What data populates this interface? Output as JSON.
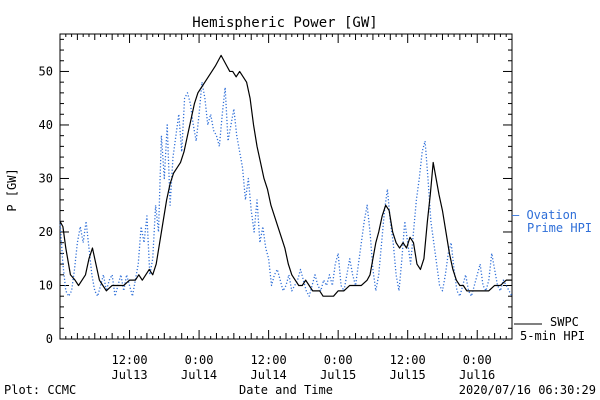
{
  "chart_data": {
    "type": "line",
    "title": "Hemispheric Power [GW]",
    "xlabel": "Date and Time",
    "ylabel": "P [GW]",
    "ylim": [
      0,
      57
    ],
    "xlim": [
      0,
      78
    ],
    "y_ticks": [
      0,
      10,
      20,
      30,
      40,
      50
    ],
    "x_ticks": [
      {
        "x": 12,
        "line1": "12:00",
        "line2": "Jul13"
      },
      {
        "x": 24,
        "line1": "0:00",
        "line2": "Jul14"
      },
      {
        "x": 36,
        "line1": "12:00",
        "line2": "Jul14"
      },
      {
        "x": 48,
        "line1": "0:00",
        "line2": "Jul15"
      },
      {
        "x": 60,
        "line1": "12:00",
        "line2": "Jul15"
      },
      {
        "x": 72,
        "line1": "0:00",
        "line2": "Jul16"
      }
    ],
    "grid": false,
    "series": [
      {
        "name": "SWPC 5-min HPI",
        "legend_line1": "SWPC",
        "legend_line2": "5-min HPI",
        "style": "solid",
        "color": "#000000",
        "points": [
          [
            0,
            22
          ],
          [
            0.5,
            21
          ],
          [
            1,
            17
          ],
          [
            1.8,
            12
          ],
          [
            2.6,
            11
          ],
          [
            3.2,
            10
          ],
          [
            3.8,
            11
          ],
          [
            4.4,
            12
          ],
          [
            5,
            15
          ],
          [
            5.6,
            17
          ],
          [
            6.2,
            14
          ],
          [
            6.8,
            11
          ],
          [
            7.4,
            10
          ],
          [
            8,
            9
          ],
          [
            9,
            10
          ],
          [
            10,
            10
          ],
          [
            11,
            10
          ],
          [
            12,
            11
          ],
          [
            13,
            11
          ],
          [
            13.6,
            12
          ],
          [
            14.2,
            11
          ],
          [
            14.8,
            12
          ],
          [
            15.4,
            13
          ],
          [
            16,
            12
          ],
          [
            16.6,
            14
          ],
          [
            17.2,
            18
          ],
          [
            17.8,
            22
          ],
          [
            18.4,
            26
          ],
          [
            19,
            29
          ],
          [
            19.6,
            31
          ],
          [
            20.2,
            32
          ],
          [
            20.8,
            33
          ],
          [
            21.4,
            35
          ],
          [
            22,
            38
          ],
          [
            22.6,
            41
          ],
          [
            23.2,
            44
          ],
          [
            23.8,
            46
          ],
          [
            24.4,
            47
          ],
          [
            25,
            48
          ],
          [
            25.6,
            49
          ],
          [
            26.2,
            50
          ],
          [
            26.8,
            51
          ],
          [
            27.3,
            52
          ],
          [
            27.8,
            53
          ],
          [
            28.3,
            52
          ],
          [
            28.8,
            51
          ],
          [
            29.3,
            50
          ],
          [
            29.8,
            50
          ],
          [
            30.4,
            49
          ],
          [
            31,
            50
          ],
          [
            31.6,
            49
          ],
          [
            32.2,
            48
          ],
          [
            32.8,
            45
          ],
          [
            33.4,
            40
          ],
          [
            34,
            36
          ],
          [
            34.6,
            33
          ],
          [
            35.2,
            30
          ],
          [
            35.8,
            28
          ],
          [
            36.4,
            25
          ],
          [
            37,
            23
          ],
          [
            37.6,
            21
          ],
          [
            38.2,
            19
          ],
          [
            38.8,
            17
          ],
          [
            39.4,
            14
          ],
          [
            40,
            12
          ],
          [
            40.6,
            11
          ],
          [
            41.2,
            10
          ],
          [
            41.8,
            10
          ],
          [
            42.4,
            11
          ],
          [
            43,
            10
          ],
          [
            43.6,
            9
          ],
          [
            44.2,
            9
          ],
          [
            44.8,
            9
          ],
          [
            45.4,
            8
          ],
          [
            46,
            8
          ],
          [
            46.6,
            8
          ],
          [
            47.2,
            8
          ],
          [
            48,
            9
          ],
          [
            49,
            9
          ],
          [
            50,
            10
          ],
          [
            51,
            10
          ],
          [
            52,
            10
          ],
          [
            53,
            11
          ],
          [
            53.5,
            12
          ],
          [
            54,
            15
          ],
          [
            54.5,
            18
          ],
          [
            55,
            20
          ],
          [
            55.6,
            23
          ],
          [
            56.2,
            25
          ],
          [
            56.8,
            24
          ],
          [
            57.4,
            20
          ],
          [
            58,
            18
          ],
          [
            58.6,
            17
          ],
          [
            59.2,
            18
          ],
          [
            59.8,
            17
          ],
          [
            60.4,
            19
          ],
          [
            61,
            18
          ],
          [
            61.6,
            14
          ],
          [
            62.2,
            13
          ],
          [
            62.8,
            15
          ],
          [
            63.4,
            22
          ],
          [
            63.9,
            27
          ],
          [
            64.4,
            33
          ],
          [
            64.9,
            30
          ],
          [
            65.4,
            27
          ],
          [
            66,
            24
          ],
          [
            66.6,
            20
          ],
          [
            67.2,
            16
          ],
          [
            67.8,
            13
          ],
          [
            68.4,
            11
          ],
          [
            69,
            10
          ],
          [
            69.6,
            10
          ],
          [
            70.2,
            9
          ],
          [
            71,
            9
          ],
          [
            72,
            9
          ],
          [
            73,
            9
          ],
          [
            74,
            9
          ],
          [
            75,
            10
          ],
          [
            76,
            10
          ],
          [
            77,
            11
          ],
          [
            78,
            11
          ]
        ]
      },
      {
        "name": "Ovation Prime HPI",
        "legend_line1": "– Ovation",
        "legend_line2": "Prime HPI",
        "style": "dotted",
        "color": "#2f6fd8",
        "points": [
          [
            0,
            22
          ],
          [
            0.5,
            14
          ],
          [
            1,
            9
          ],
          [
            1.5,
            8
          ],
          [
            2,
            9
          ],
          [
            2.5,
            13
          ],
          [
            3,
            18
          ],
          [
            3.5,
            21
          ],
          [
            4,
            18
          ],
          [
            4.5,
            22
          ],
          [
            5,
            17
          ],
          [
            5.5,
            12
          ],
          [
            6,
            9
          ],
          [
            6.5,
            8
          ],
          [
            7,
            10
          ],
          [
            7.5,
            12
          ],
          [
            8,
            9
          ],
          [
            8.5,
            11
          ],
          [
            9,
            12
          ],
          [
            9.5,
            8
          ],
          [
            10,
            10
          ],
          [
            10.5,
            12
          ],
          [
            11,
            9
          ],
          [
            11.5,
            12
          ],
          [
            12,
            10
          ],
          [
            12.5,
            8
          ],
          [
            13,
            11
          ],
          [
            13.5,
            14
          ],
          [
            14,
            21
          ],
          [
            14.5,
            18
          ],
          [
            15,
            23
          ],
          [
            15.5,
            12
          ],
          [
            16,
            15
          ],
          [
            16.5,
            25
          ],
          [
            17,
            20
          ],
          [
            17.5,
            38
          ],
          [
            18,
            30
          ],
          [
            18.5,
            40
          ],
          [
            19,
            25
          ],
          [
            19.5,
            34
          ],
          [
            20,
            38
          ],
          [
            20.5,
            42
          ],
          [
            21,
            35
          ],
          [
            21.5,
            45
          ],
          [
            22,
            46
          ],
          [
            22.5,
            44
          ],
          [
            23,
            40
          ],
          [
            23.5,
            37
          ],
          [
            24,
            42
          ],
          [
            24.5,
            48
          ],
          [
            25,
            45
          ],
          [
            25.5,
            40
          ],
          [
            26,
            42
          ],
          [
            26.5,
            39
          ],
          [
            27,
            38
          ],
          [
            27.5,
            36
          ],
          [
            28,
            42
          ],
          [
            28.5,
            47
          ],
          [
            29,
            37
          ],
          [
            29.5,
            40
          ],
          [
            30,
            43
          ],
          [
            30.5,
            38
          ],
          [
            31,
            35
          ],
          [
            31.5,
            32
          ],
          [
            32,
            26
          ],
          [
            32.5,
            30
          ],
          [
            33,
            24
          ],
          [
            33.5,
            20
          ],
          [
            34,
            26
          ],
          [
            34.5,
            18
          ],
          [
            35,
            21
          ],
          [
            35.5,
            17
          ],
          [
            36,
            15
          ],
          [
            36.5,
            10
          ],
          [
            37,
            12
          ],
          [
            37.5,
            13
          ],
          [
            38,
            11
          ],
          [
            38.5,
            9
          ],
          [
            39,
            10
          ],
          [
            39.5,
            12
          ],
          [
            40,
            9
          ],
          [
            40.5,
            10
          ],
          [
            41,
            11
          ],
          [
            41.5,
            13
          ],
          [
            42,
            11
          ],
          [
            42.5,
            9
          ],
          [
            43,
            8
          ],
          [
            43.5,
            10
          ],
          [
            44,
            12
          ],
          [
            44.5,
            10
          ],
          [
            45,
            9
          ],
          [
            45.5,
            11
          ],
          [
            46,
            10
          ],
          [
            46.5,
            12
          ],
          [
            47,
            10
          ],
          [
            47.5,
            14
          ],
          [
            48,
            16
          ],
          [
            48.5,
            10
          ],
          [
            49,
            9
          ],
          [
            49.5,
            12
          ],
          [
            50,
            15
          ],
          [
            50.5,
            12
          ],
          [
            51,
            10
          ],
          [
            51.5,
            14
          ],
          [
            52,
            18
          ],
          [
            52.5,
            22
          ],
          [
            53,
            25
          ],
          [
            53.5,
            20
          ],
          [
            54,
            13
          ],
          [
            54.5,
            9
          ],
          [
            55,
            12
          ],
          [
            55.5,
            18
          ],
          [
            56,
            24
          ],
          [
            56.5,
            28
          ],
          [
            57,
            22
          ],
          [
            57.5,
            18
          ],
          [
            58,
            12
          ],
          [
            58.5,
            9
          ],
          [
            59,
            15
          ],
          [
            59.5,
            22
          ],
          [
            60,
            18
          ],
          [
            60.5,
            14
          ],
          [
            61,
            20
          ],
          [
            61.5,
            26
          ],
          [
            62,
            30
          ],
          [
            62.5,
            35
          ],
          [
            63,
            37
          ],
          [
            63.5,
            30
          ],
          [
            64,
            22
          ],
          [
            64.5,
            18
          ],
          [
            65,
            14
          ],
          [
            65.5,
            10
          ],
          [
            66,
            9
          ],
          [
            66.5,
            12
          ],
          [
            67,
            16
          ],
          [
            67.5,
            18
          ],
          [
            68,
            13
          ],
          [
            68.5,
            9
          ],
          [
            69,
            8
          ],
          [
            69.5,
            10
          ],
          [
            70,
            12
          ],
          [
            70.5,
            9
          ],
          [
            71,
            8
          ],
          [
            71.5,
            10
          ],
          [
            72,
            12
          ],
          [
            72.5,
            14
          ],
          [
            73,
            10
          ],
          [
            73.5,
            9
          ],
          [
            74,
            11
          ],
          [
            74.5,
            16
          ],
          [
            75,
            13
          ],
          [
            75.5,
            10
          ],
          [
            76,
            9
          ],
          [
            76.5,
            11
          ],
          [
            77,
            10
          ],
          [
            77.5,
            9
          ],
          [
            78,
            8
          ]
        ]
      }
    ]
  },
  "footer": {
    "left": "Plot: CCMC",
    "right": "2020/07/16 06:30:29"
  }
}
